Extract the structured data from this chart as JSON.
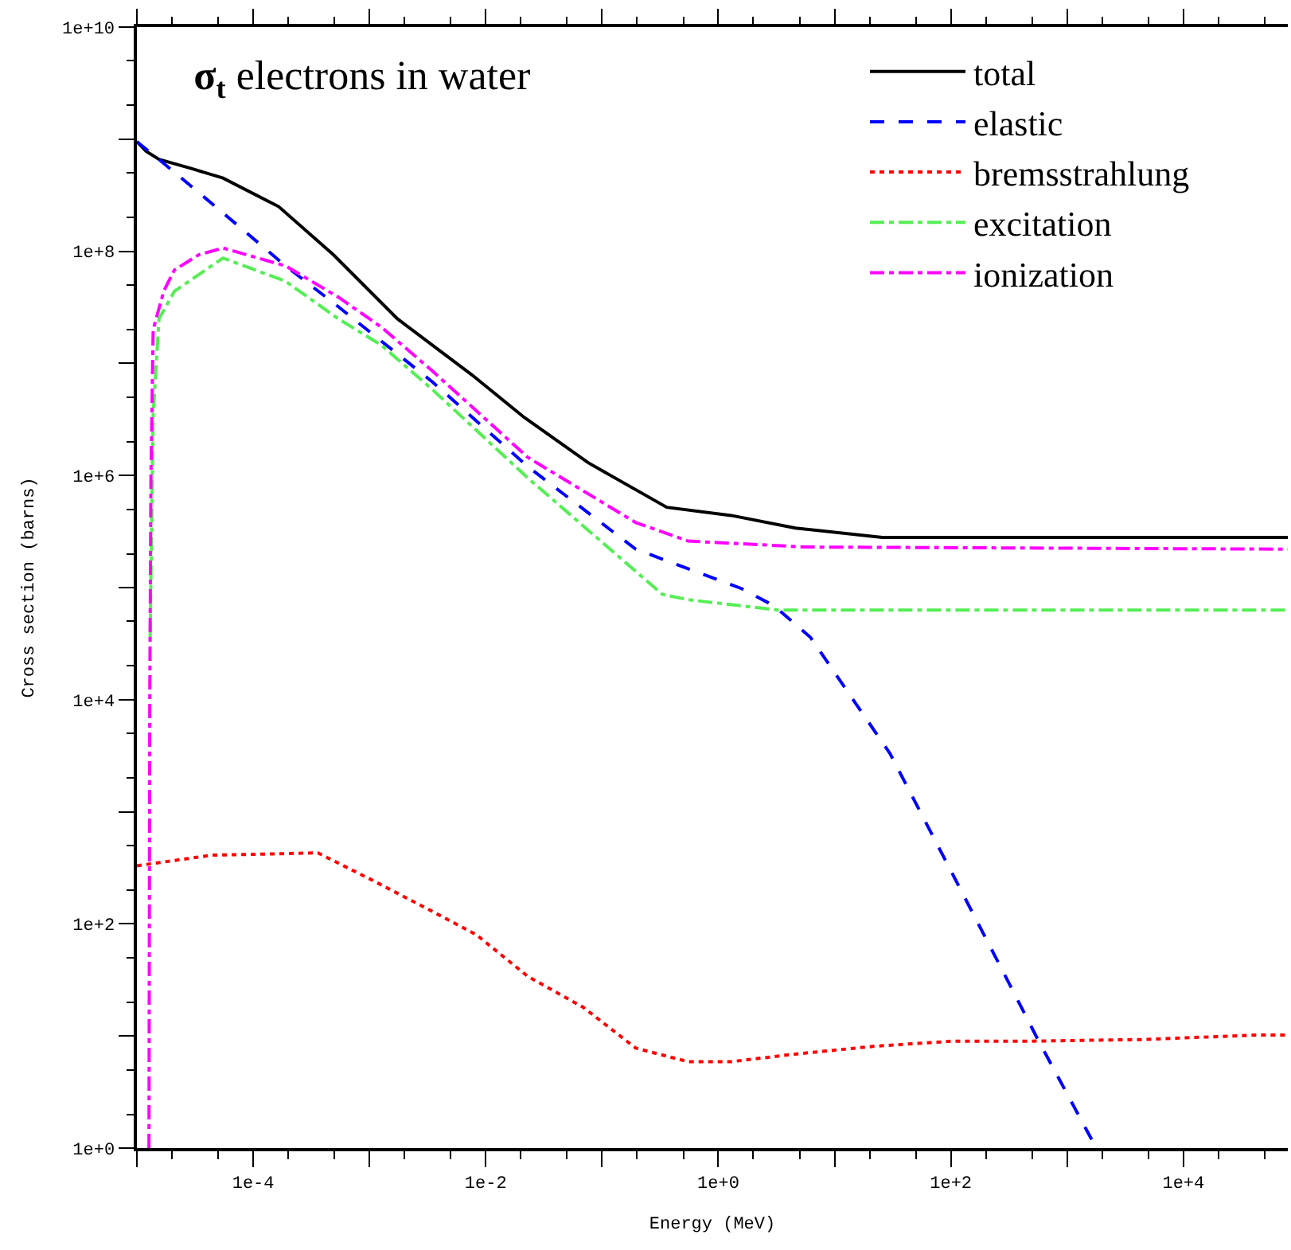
{
  "chart_data": {
    "type": "line",
    "title": "σ$_{t}$ electrons in water",
    "xlabel": "Energy (MeV)",
    "ylabel": "Cross section (barns)",
    "log": "xy",
    "legend": "top right",
    "marker": "none",
    "xlim": [
      1e-05,
      79000
    ],
    "ylim": [
      1,
      10000000000.0
    ],
    "xticks": [
      {
        "value": 1e-05,
        "label": null
      },
      {
        "value": 0.0001,
        "label": "1e-4"
      },
      {
        "value": 0.001,
        "label": null
      },
      {
        "value": 0.01,
        "label": "1e-2"
      },
      {
        "value": 0.1,
        "label": null
      },
      {
        "value": 1,
        "label": "1e+0"
      },
      {
        "value": 10,
        "label": null
      },
      {
        "value": 100,
        "label": "1e+2"
      },
      {
        "value": 1000,
        "label": null
      },
      {
        "value": 10000,
        "label": "1e+4"
      }
    ],
    "yticks": [
      {
        "value": 1,
        "label": "1e+0"
      },
      {
        "value": 10,
        "label": null
      },
      {
        "value": 100,
        "label": "1e+2"
      },
      {
        "value": 1000,
        "label": null
      },
      {
        "value": 10000,
        "label": "1e+4"
      },
      {
        "value": 100000,
        "label": null
      },
      {
        "value": 1000000,
        "label": "1e+6"
      },
      {
        "value": 10000000,
        "label": null
      },
      {
        "value": 100000000,
        "label": "1e+8"
      },
      {
        "value": 1000000000,
        "label": null
      },
      {
        "value": 10000000000,
        "label": "1e+10"
      }
    ],
    "series": [
      {
        "name": "total",
        "color": "#000000",
        "line_style": "solid",
        "x": [
          1e-05,
          1.2e-05,
          1.55e-05,
          2.9e-05,
          5.5e-05,
          0.000166,
          0.00049,
          0.00174,
          0.0076,
          0.0214,
          0.076,
          0.36,
          1.29,
          4.6,
          25.7,
          105,
          500,
          2450,
          11700,
          79000
        ],
        "values": [
          950000000.0,
          780000000.0,
          660000000.0,
          550000000.0,
          450000000.0,
          250000000.0,
          93000000.0,
          25000000.0,
          7900000.0,
          3300000.0,
          1300000.0,
          520000.0,
          440000.0,
          340000.0,
          280000.0,
          280000.0,
          280000.0,
          280000.0,
          280000.0,
          280000.0
        ]
      },
      {
        "name": "elastic",
        "color": "#0000ff",
        "line_style": "dashed",
        "x": [
          1e-05,
          1.55e-05,
          5.5e-05,
          0.00019,
          0.00054,
          0.0035,
          0.023,
          0.195,
          1.58,
          3.0,
          6.2,
          30,
          105,
          295,
          560,
          1780
        ],
        "values": [
          950000000.0,
          660000000.0,
          220000000.0,
          74000000.0,
          32000000.0,
          6800000.0,
          1200000.0,
          220000.0,
          98000.0,
          69000.0,
          36000.0,
          3300,
          270,
          34,
          9.3,
          1.0
        ]
      },
      {
        "name": "bremsstrahlung",
        "color": "#ff0000",
        "line_style": "dotted",
        "x": [
          1e-05,
          4.4e-05,
          0.00036,
          0.00102,
          0.003,
          0.0083,
          0.023,
          0.069,
          0.195,
          0.55,
          1.29,
          4.6,
          22,
          105,
          500,
          4600,
          42000,
          79000
        ],
        "values": [
          330,
          410,
          430,
          250,
          140,
          80,
          34,
          18,
          7.8,
          5.9,
          5.9,
          6.9,
          8.1,
          9.0,
          9.0,
          9.3,
          10.2,
          10.2
        ]
      },
      {
        "name": "excitation",
        "color": "#55ee55",
        "line_style": "dashdot",
        "x": [
          1.3e-05,
          1.38e-05,
          1.55e-05,
          2.1e-05,
          5.5e-05,
          0.00019,
          0.00054,
          0.00127,
          0.0035,
          0.023,
          0.33,
          0.55,
          3.3,
          79000
        ],
        "values": [
          36000,
          3500000.0,
          25000000.0,
          44000000.0,
          87000000.0,
          54000000.0,
          25000000.0,
          14500000.0,
          5800000.0,
          950000.0,
          87000,
          78000,
          63000,
          63000
        ]
      },
      {
        "name": "ionization",
        "color": "#ff00ff",
        "line_style": "dashdot",
        "x": [
          1.27e-05,
          1.29e-05,
          1.32e-05,
          1.38e-05,
          1.7e-05,
          2.1e-05,
          3.4e-05,
          5.5e-05,
          0.00019,
          0.00054,
          0.00127,
          0.0035,
          0.023,
          0.195,
          0.55,
          5.6,
          79000
        ],
        "values": [
          1.0,
          10000,
          950000.0,
          20000000.0,
          44000000.0,
          68000000.0,
          93000000.0,
          107000000.0,
          74000000.0,
          39000000.0,
          21000000.0,
          8500000.0,
          1450000.0,
          380000.0,
          260000.0,
          230000.0,
          220000.0
        ]
      }
    ]
  }
}
